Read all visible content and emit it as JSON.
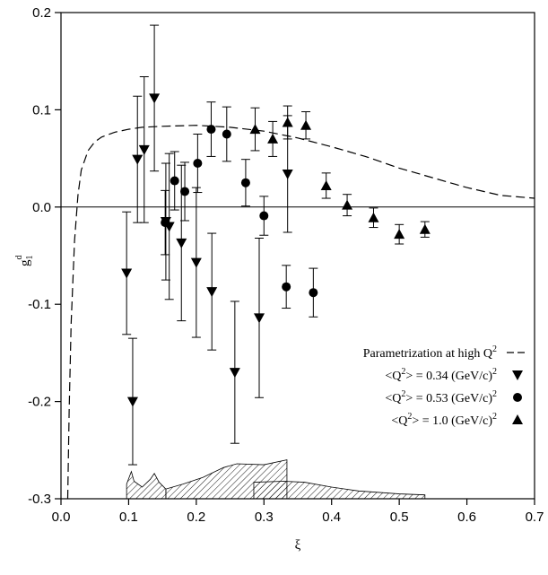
{
  "chart_data": {
    "type": "scatter",
    "xlabel": "ξ",
    "ylabel": {
      "main": "g",
      "sub": "1",
      "sup": "d"
    },
    "xlim": [
      0.0,
      0.7
    ],
    "ylim": [
      -0.3,
      0.2
    ],
    "xticks": [
      "0.0",
      "0.1",
      "0.2",
      "0.3",
      "0.4",
      "0.5",
      "0.6",
      "0.7"
    ],
    "yticks": [
      "-0.3",
      "-0.2",
      "-0.1",
      "0.0",
      "0.1",
      "0.2"
    ],
    "legend_position": "bottom-right",
    "legend": [
      {
        "text": "Parametrization at high Q",
        "sup": "2",
        "marker": "dash"
      },
      {
        "text": "<Q",
        "sup": "2",
        "text2": "> = 0.34 (GeV/c)",
        "sup2": "2",
        "marker": "triangle-down"
      },
      {
        "text": "<Q",
        "sup": "2",
        "text2": "> = 0.53 (GeV/c)",
        "sup2": "2",
        "marker": "circle"
      },
      {
        "text": "<Q",
        "sup": "2",
        "text2": "> = 1.0   (GeV/c)",
        "sup2": "2",
        "marker": "triangle-up"
      }
    ],
    "curve": {
      "name": "Parametrization at high Q²",
      "x": [
        0.01,
        0.012,
        0.015,
        0.02,
        0.025,
        0.03,
        0.04,
        0.05,
        0.06,
        0.08,
        0.1,
        0.12,
        0.15,
        0.2,
        0.25,
        0.3,
        0.35,
        0.4,
        0.45,
        0.5,
        0.55,
        0.6,
        0.65,
        0.7
      ],
      "y": [
        -0.3,
        -0.21,
        -0.12,
        -0.035,
        0.012,
        0.038,
        0.058,
        0.067,
        0.072,
        0.077,
        0.08,
        0.082,
        0.083,
        0.084,
        0.082,
        0.078,
        0.071,
        0.062,
        0.052,
        0.04,
        0.03,
        0.02,
        0.012,
        0.009
      ]
    },
    "series": [
      {
        "name": "<Q²> = 0.34 (GeV/c)²",
        "marker": "triangle-down",
        "x": [
          0.097,
          0.106,
          0.113,
          0.123,
          0.138,
          0.155,
          0.16,
          0.178,
          0.2,
          0.223,
          0.257,
          0.293,
          0.335
        ],
        "y": [
          -0.068,
          -0.2,
          0.049,
          0.059,
          0.112,
          -0.015,
          -0.02,
          -0.037,
          -0.057,
          -0.087,
          -0.17,
          -0.114,
          0.034
        ],
        "err": [
          0.063,
          0.065,
          0.065,
          0.075,
          0.075,
          0.06,
          0.075,
          0.08,
          0.077,
          0.06,
          0.073,
          0.082,
          0.06
        ]
      },
      {
        "name": "<Q²> = 0.53 (GeV/c)²",
        "marker": "circle",
        "x": [
          0.154,
          0.168,
          0.183,
          0.202,
          0.222,
          0.245,
          0.273,
          0.3,
          0.333,
          0.373
        ],
        "y": [
          -0.016,
          0.027,
          0.016,
          0.045,
          0.08,
          0.075,
          0.025,
          -0.009,
          -0.082,
          -0.088
        ],
        "err": [
          0.033,
          0.03,
          0.03,
          0.03,
          0.028,
          0.028,
          0.024,
          0.02,
          0.022,
          0.025
        ]
      },
      {
        "name": "<Q²> = 1.0 (GeV/c)²",
        "marker": "triangle-up",
        "x": [
          0.287,
          0.313,
          0.335,
          0.362,
          0.392,
          0.423,
          0.462,
          0.5,
          0.538
        ],
        "y": [
          0.08,
          0.07,
          0.087,
          0.084,
          0.022,
          0.002,
          -0.011,
          -0.028,
          -0.023
        ],
        "err": [
          0.022,
          0.018,
          0.017,
          0.014,
          0.013,
          0.011,
          0.01,
          0.01,
          0.008
        ]
      }
    ],
    "systematic_bands": [
      {
        "x": [
          0.097,
          0.104,
          0.108,
          0.12,
          0.132,
          0.138,
          0.145,
          0.155,
          0.155
        ],
        "y": [
          -0.285,
          -0.272,
          -0.282,
          -0.288,
          -0.28,
          -0.274,
          -0.283,
          -0.29,
          -0.3
        ]
      },
      {
        "x": [
          0.155,
          0.18,
          0.21,
          0.24,
          0.26,
          0.3,
          0.334,
          0.334
        ],
        "y": [
          -0.29,
          -0.285,
          -0.278,
          -0.268,
          -0.264,
          -0.265,
          -0.26,
          -0.3
        ]
      },
      {
        "x": [
          0.285,
          0.33,
          0.36,
          0.4,
          0.44,
          0.5,
          0.538,
          0.538
        ],
        "y": [
          -0.283,
          -0.282,
          -0.283,
          -0.288,
          -0.292,
          -0.295,
          -0.296,
          -0.3
        ]
      }
    ]
  }
}
